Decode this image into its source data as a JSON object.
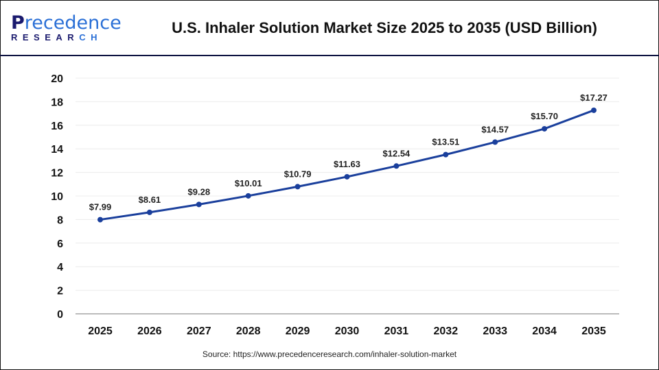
{
  "header": {
    "title": "U.S. Inhaler Solution Market Size 2025 to 2035 (USD Billion)",
    "logo_text": "Precedence RESEARCH"
  },
  "source": "Source: https://www.precedenceresearch.com/inhaler-solution-market",
  "chart_data": {
    "type": "line",
    "title": "U.S. Inhaler Solution Market Size 2025 to 2035 (USD Billion)",
    "categories": [
      "2025",
      "2026",
      "2027",
      "2028",
      "2029",
      "2030",
      "2031",
      "2032",
      "2033",
      "2034",
      "2035"
    ],
    "values": [
      7.99,
      8.61,
      9.28,
      10.01,
      10.79,
      11.63,
      12.54,
      13.51,
      14.57,
      15.7,
      17.27
    ],
    "labels": [
      "$7.99",
      "$8.61",
      "$9.28",
      "$10.01",
      "$10.79",
      "$11.63",
      "$12.54",
      "$13.51",
      "$14.57",
      "$15.70",
      "$17.27"
    ],
    "yticks": [
      "0",
      "2",
      "4",
      "6",
      "8",
      "10",
      "12",
      "14",
      "16",
      "18",
      "20"
    ],
    "ylim": [
      0,
      20
    ],
    "grid": true,
    "line_color": "#1a3f9c"
  }
}
